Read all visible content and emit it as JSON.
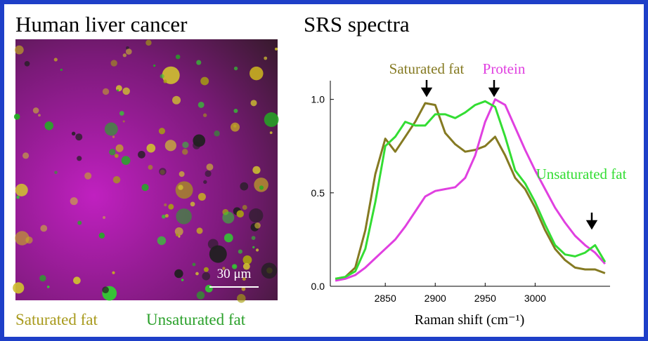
{
  "image_panel": {
    "title": "Human liver cancer",
    "scale_bar": "30 μm",
    "legend": [
      {
        "name": "Saturated fat",
        "color": "#a89a1c"
      },
      {
        "name": "Unsaturated fat",
        "color": "#2aa02a"
      }
    ]
  },
  "chart_data": {
    "type": "line",
    "title": "SRS spectra",
    "x_label": "Raman shift (cm⁻¹)",
    "x": [
      2800,
      2810,
      2820,
      2830,
      2840,
      2850,
      2860,
      2870,
      2880,
      2890,
      2900,
      2910,
      2920,
      2930,
      2940,
      2950,
      2960,
      2970,
      2980,
      2990,
      3000,
      3010,
      3020,
      3030,
      3040,
      3050,
      3060,
      3070
    ],
    "series": [
      {
        "name": "Saturated fat",
        "color": "#857a22",
        "values": [
          0.04,
          0.05,
          0.1,
          0.3,
          0.6,
          0.79,
          0.72,
          0.8,
          0.88,
          0.98,
          0.97,
          0.82,
          0.76,
          0.72,
          0.73,
          0.75,
          0.8,
          0.7,
          0.58,
          0.52,
          0.42,
          0.3,
          0.2,
          0.14,
          0.1,
          0.09,
          0.09,
          0.07
        ]
      },
      {
        "name": "Protein",
        "color": "#e040e0",
        "values": [
          0.03,
          0.04,
          0.06,
          0.1,
          0.15,
          0.2,
          0.25,
          0.32,
          0.4,
          0.48,
          0.51,
          0.52,
          0.53,
          0.58,
          0.7,
          0.88,
          1.0,
          0.97,
          0.85,
          0.73,
          0.62,
          0.52,
          0.42,
          0.34,
          0.27,
          0.22,
          0.18,
          0.12
        ]
      },
      {
        "name": "Unsaturated fat",
        "color": "#33dd33",
        "values": [
          0.04,
          0.05,
          0.08,
          0.2,
          0.45,
          0.75,
          0.8,
          0.88,
          0.86,
          0.86,
          0.92,
          0.92,
          0.9,
          0.93,
          0.97,
          0.99,
          0.96,
          0.8,
          0.62,
          0.55,
          0.45,
          0.33,
          0.22,
          0.17,
          0.16,
          0.18,
          0.22,
          0.13
        ]
      }
    ],
    "xlim": [
      2795,
      3075
    ],
    "ylim": [
      0,
      1.1
    ],
    "xticks": [
      2850,
      2900,
      2950,
      3000
    ],
    "yticks": [
      {
        "value": 0,
        "label": "0.0"
      },
      {
        "value": 0.5,
        "label": "0.5"
      },
      {
        "value": 1,
        "label": "1.0"
      }
    ]
  }
}
